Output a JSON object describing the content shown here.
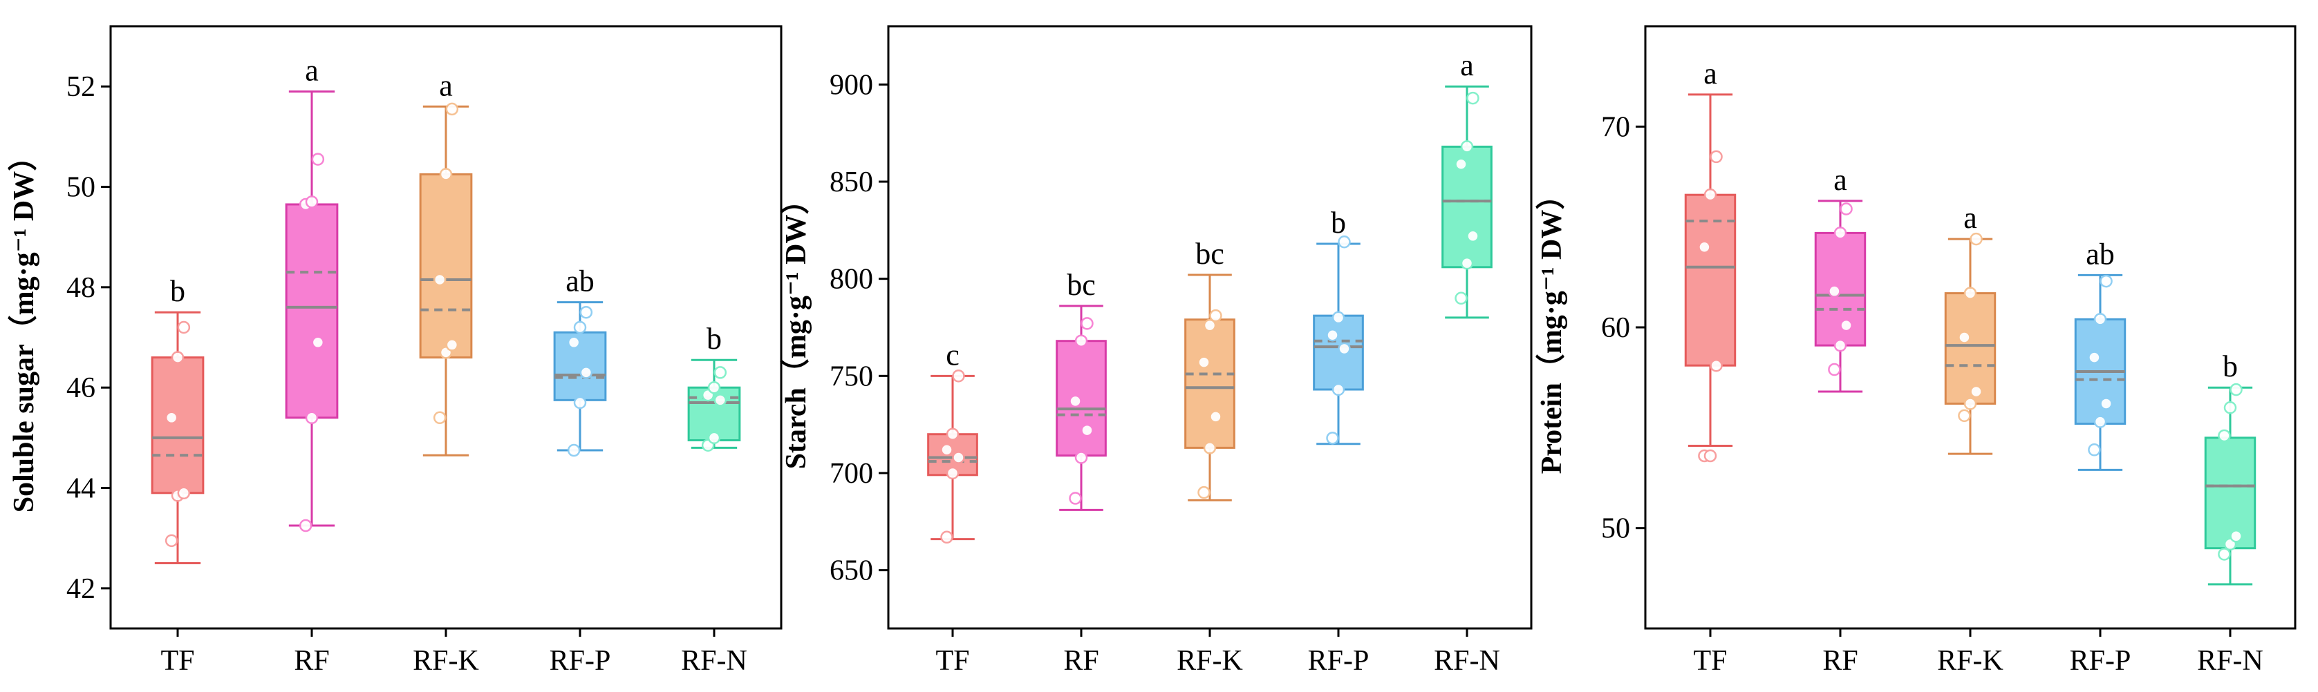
{
  "figure": {
    "panels_count": 3
  },
  "chart_data": [
    {
      "type": "box",
      "ylabel": "Soluble sugar（mg·g⁻¹ DW）",
      "ylim": [
        41.2,
        53.2
      ],
      "yticks": [
        42,
        44,
        46,
        48,
        50,
        52
      ],
      "grid": false,
      "categories": [
        "TF",
        "RF",
        "RF-K",
        "RF-P",
        "RF-N"
      ],
      "colors": {
        "fill": [
          "#f89a9a",
          "#f77fd2",
          "#f6bf8f",
          "#8ccdf3",
          "#7ef0c8"
        ],
        "stroke": [
          "#e55a5a",
          "#d83ba8",
          "#d9884d",
          "#4a9fd8",
          "#2ec99a"
        ]
      },
      "boxes": [
        {
          "category": "TF",
          "q1": 43.9,
          "median": 45.0,
          "mean": 44.65,
          "q3": 46.6,
          "whisker_low": 42.5,
          "whisker_high": 47.5,
          "points": [
            42.95,
            43.85,
            43.9,
            45.4,
            46.6,
            47.2
          ],
          "significance": "b"
        },
        {
          "category": "RF",
          "q1": 45.4,
          "median": 47.6,
          "mean": 48.3,
          "q3": 49.65,
          "whisker_low": 43.25,
          "whisker_high": 51.9,
          "points": [
            43.25,
            45.4,
            46.9,
            49.65,
            49.7,
            50.55
          ],
          "significance": "a"
        },
        {
          "category": "RF-K",
          "q1": 46.6,
          "median": 48.15,
          "mean": 47.55,
          "q3": 50.25,
          "whisker_low": 44.65,
          "whisker_high": 51.6,
          "points": [
            45.4,
            46.7,
            46.85,
            48.15,
            50.25,
            51.55
          ],
          "significance": "a"
        },
        {
          "category": "RF-P",
          "q1": 45.75,
          "median": 46.25,
          "mean": 46.2,
          "q3": 47.1,
          "whisker_low": 44.75,
          "whisker_high": 47.7,
          "points": [
            44.75,
            45.7,
            46.3,
            46.9,
            47.2,
            47.5
          ],
          "significance": "ab"
        },
        {
          "category": "RF-N",
          "q1": 44.95,
          "median": 45.7,
          "mean": 45.8,
          "q3": 46.0,
          "whisker_low": 44.8,
          "whisker_high": 46.55,
          "points": [
            44.85,
            45.0,
            45.75,
            45.85,
            46.0,
            46.3
          ],
          "significance": "b"
        }
      ]
    },
    {
      "type": "box",
      "ylabel": "Starch（mg·g⁻¹ DW）",
      "ylim": [
        620,
        930
      ],
      "yticks": [
        650,
        700,
        750,
        800,
        850,
        900
      ],
      "grid": false,
      "categories": [
        "TF",
        "RF",
        "RF-K",
        "RF-P",
        "RF-N"
      ],
      "colors": {
        "fill": [
          "#f89a9a",
          "#f77fd2",
          "#f6bf8f",
          "#8ccdf3",
          "#7ef0c8"
        ],
        "stroke": [
          "#e55a5a",
          "#d83ba8",
          "#d9884d",
          "#4a9fd8",
          "#2ec99a"
        ]
      },
      "boxes": [
        {
          "category": "TF",
          "q1": 699,
          "median": 708,
          "mean": 706,
          "q3": 720,
          "whisker_low": 666,
          "whisker_high": 750,
          "points": [
            667,
            700,
            708,
            712,
            720,
            750
          ],
          "significance": "c"
        },
        {
          "category": "RF",
          "q1": 709,
          "median": 733,
          "mean": 730,
          "q3": 768,
          "whisker_low": 681,
          "whisker_high": 786,
          "points": [
            687,
            708,
            722,
            737,
            768,
            777
          ],
          "significance": "bc"
        },
        {
          "category": "RF-K",
          "q1": 713,
          "median": 744,
          "mean": 751,
          "q3": 779,
          "whisker_low": 686,
          "whisker_high": 802,
          "points": [
            690,
            713,
            729,
            757,
            776,
            781
          ],
          "significance": "bc"
        },
        {
          "category": "RF-P",
          "q1": 743,
          "median": 765,
          "mean": 768,
          "q3": 781,
          "whisker_low": 715,
          "whisker_high": 818,
          "points": [
            718,
            743,
            764,
            771,
            780,
            819
          ],
          "significance": "b"
        },
        {
          "category": "RF-N",
          "q1": 806,
          "median": 840,
          "mean": 840,
          "q3": 868,
          "whisker_low": 780,
          "whisker_high": 899,
          "points": [
            790,
            808,
            822,
            859,
            868,
            893
          ],
          "significance": "a"
        }
      ]
    },
    {
      "type": "box",
      "ylabel": "Protein（mg·g⁻¹ DW）",
      "ylim": [
        45,
        75
      ],
      "yticks": [
        50,
        60,
        70
      ],
      "grid": false,
      "categories": [
        "TF",
        "RF",
        "RF-K",
        "RF-P",
        "RF-N"
      ],
      "colors": {
        "fill": [
          "#f89a9a",
          "#f77fd2",
          "#f6bf8f",
          "#8ccdf3",
          "#7ef0c8"
        ],
        "stroke": [
          "#e55a5a",
          "#d83ba8",
          "#d9884d",
          "#4a9fd8",
          "#2ec99a"
        ]
      },
      "boxes": [
        {
          "category": "TF",
          "q1": 58.1,
          "median": 63.0,
          "mean": 65.3,
          "q3": 66.6,
          "whisker_low": 54.1,
          "whisker_high": 71.6,
          "points": [
            53.6,
            53.6,
            58.1,
            64.0,
            66.6,
            68.5
          ],
          "significance": "a"
        },
        {
          "category": "RF",
          "q1": 59.1,
          "median": 61.6,
          "mean": 60.9,
          "q3": 64.7,
          "whisker_low": 56.8,
          "whisker_high": 66.3,
          "points": [
            57.9,
            59.1,
            60.1,
            61.8,
            64.7,
            65.9
          ],
          "significance": "a"
        },
        {
          "category": "RF-K",
          "q1": 56.2,
          "median": 59.1,
          "mean": 58.1,
          "q3": 61.7,
          "whisker_low": 53.7,
          "whisker_high": 64.4,
          "points": [
            55.6,
            56.2,
            56.8,
            59.5,
            61.7,
            64.4
          ],
          "significance": "a"
        },
        {
          "category": "RF-P",
          "q1": 55.2,
          "median": 57.8,
          "mean": 57.4,
          "q3": 60.4,
          "whisker_low": 52.9,
          "whisker_high": 62.6,
          "points": [
            53.9,
            55.3,
            56.2,
            58.5,
            60.4,
            62.3
          ],
          "significance": "ab"
        },
        {
          "category": "RF-N",
          "q1": 49.0,
          "median": 52.1,
          "mean": 52.1,
          "q3": 54.5,
          "whisker_low": 47.2,
          "whisker_high": 57.0,
          "points": [
            48.7,
            49.2,
            49.6,
            54.6,
            56.0,
            56.9
          ],
          "significance": "b"
        }
      ]
    }
  ]
}
